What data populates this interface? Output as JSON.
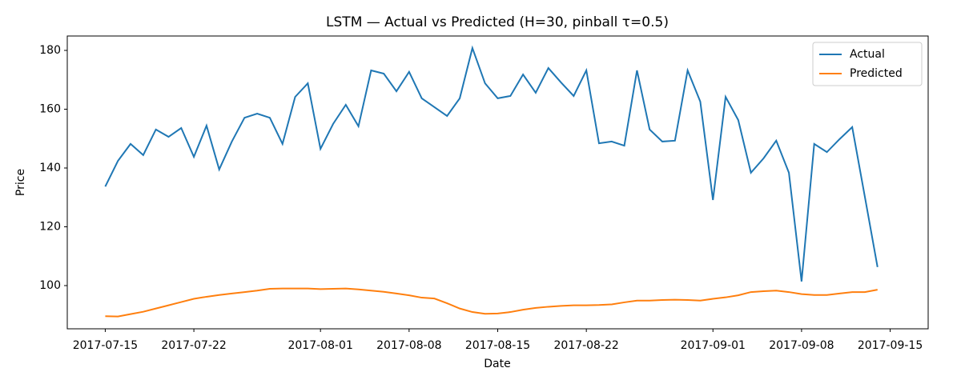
{
  "chart_data": {
    "type": "line",
    "title": "LSTM — Actual vs Predicted (H=30, pinball τ=0.5)",
    "x_label": "Date",
    "y_label": "Price",
    "x": [
      "2017-07-15",
      "2017-07-16",
      "2017-07-17",
      "2017-07-18",
      "2017-07-19",
      "2017-07-20",
      "2017-07-21",
      "2017-07-22",
      "2017-07-23",
      "2017-07-24",
      "2017-07-25",
      "2017-07-26",
      "2017-07-27",
      "2017-07-28",
      "2017-07-29",
      "2017-07-30",
      "2017-07-31",
      "2017-08-01",
      "2017-08-02",
      "2017-08-03",
      "2017-08-04",
      "2017-08-05",
      "2017-08-06",
      "2017-08-07",
      "2017-08-08",
      "2017-08-09",
      "2017-08-10",
      "2017-08-11",
      "2017-08-12",
      "2017-08-13",
      "2017-08-14",
      "2017-08-15",
      "2017-08-16",
      "2017-08-17",
      "2017-08-18",
      "2017-08-19",
      "2017-08-20",
      "2017-08-21",
      "2017-08-22",
      "2017-08-23",
      "2017-08-24",
      "2017-08-25",
      "2017-08-26",
      "2017-08-27",
      "2017-08-28",
      "2017-08-29",
      "2017-08-30",
      "2017-08-31",
      "2017-09-01",
      "2017-09-02",
      "2017-09-03",
      "2017-09-04",
      "2017-09-05",
      "2017-09-06",
      "2017-09-07",
      "2017-09-08",
      "2017-09-09",
      "2017-09-10",
      "2017-09-11",
      "2017-09-12",
      "2017-09-13",
      "2017-09-14"
    ],
    "series": [
      {
        "name": "Actual",
        "color": "#1f77b4",
        "values": [
          133.7,
          142.4,
          148.2,
          144.4,
          153.1,
          150.6,
          153.6,
          143.8,
          154.4,
          139.5,
          149.0,
          157.1,
          158.5,
          157.1,
          148.2,
          164.2,
          168.8,
          146.5,
          155.0,
          161.5,
          154.2,
          173.2,
          172.1,
          166.1,
          172.7,
          163.7,
          160.7,
          157.7,
          163.7,
          180.8,
          168.8,
          163.7,
          164.5,
          171.8,
          165.6,
          174.0,
          169.1,
          164.5,
          173.2,
          148.4,
          149.0,
          147.6,
          173.2,
          153.1,
          149.0,
          149.3,
          173.2,
          162.6,
          129.1,
          164.2,
          156.3,
          138.4,
          143.3,
          149.3,
          138.4,
          101.4,
          148.2,
          145.4,
          149.8,
          153.9,
          130.2,
          106.3
        ]
      },
      {
        "name": "Predicted",
        "color": "#ff7f0e",
        "values": [
          89.6,
          89.5,
          90.3,
          91.1,
          92.2,
          93.3,
          94.4,
          95.5,
          96.2,
          96.8,
          97.3,
          97.8,
          98.3,
          98.9,
          99.0,
          99.0,
          99.0,
          98.8,
          98.9,
          99.0,
          98.7,
          98.3,
          97.9,
          97.3,
          96.7,
          95.9,
          95.6,
          94.0,
          92.2,
          91.0,
          90.4,
          90.5,
          91.0,
          91.8,
          92.4,
          92.8,
          93.1,
          93.3,
          93.3,
          93.4,
          93.6,
          94.3,
          94.9,
          94.9,
          95.1,
          95.2,
          95.1,
          94.9,
          95.5,
          96.0,
          96.7,
          97.8,
          98.1,
          98.3,
          97.8,
          97.1,
          96.8,
          96.8,
          97.3,
          97.8,
          97.8,
          98.6
        ]
      }
    ],
    "xlim": [
      "2017-07-12",
      "2017-09-18"
    ],
    "xticks": [
      "2017-07-15",
      "2017-07-22",
      "2017-08-01",
      "2017-08-08",
      "2017-08-15",
      "2017-08-22",
      "2017-09-01",
      "2017-09-08",
      "2017-09-15"
    ],
    "ylim": [
      85.3,
      184.9
    ],
    "yticks": [
      100,
      120,
      140,
      160,
      180
    ],
    "grid": false,
    "legend": "upper right"
  }
}
